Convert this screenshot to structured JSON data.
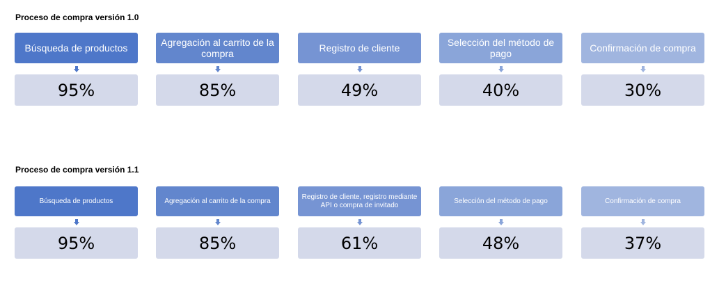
{
  "sections": [
    {
      "title": "Proceso de compra versión 1.0",
      "steps": [
        {
          "label": "Búsqueda de productos",
          "value": "95%",
          "color": "#4e77c9"
        },
        {
          "label": "Agregación al carrito de la compra",
          "value": "85%",
          "color": "#6286cd"
        },
        {
          "label": "Registro de cliente",
          "value": "49%",
          "color": "#7694d3"
        },
        {
          "label": "Selección del método de pago",
          "value": "40%",
          "color": "#8aa5d9"
        },
        {
          "label": "Confirmación de compra",
          "value": "30%",
          "color": "#a0b5df"
        }
      ]
    },
    {
      "title": "Proceso de compra versión 1.1",
      "steps": [
        {
          "label": "Búsqueda de productos",
          "value": "95%",
          "color": "#4e77c9"
        },
        {
          "label": "Agregación al carrito de la compra",
          "value": "85%",
          "color": "#6286cd"
        },
        {
          "label": "Registro de cliente,  registro mediante API o compra de invitado",
          "value": "61%",
          "color": "#7694d3"
        },
        {
          "label": "Selección del método de pago",
          "value": "48%",
          "color": "#8aa5d9"
        },
        {
          "label": "Confirmación de compra",
          "value": "37%",
          "color": "#a0b5df"
        }
      ]
    }
  ]
}
